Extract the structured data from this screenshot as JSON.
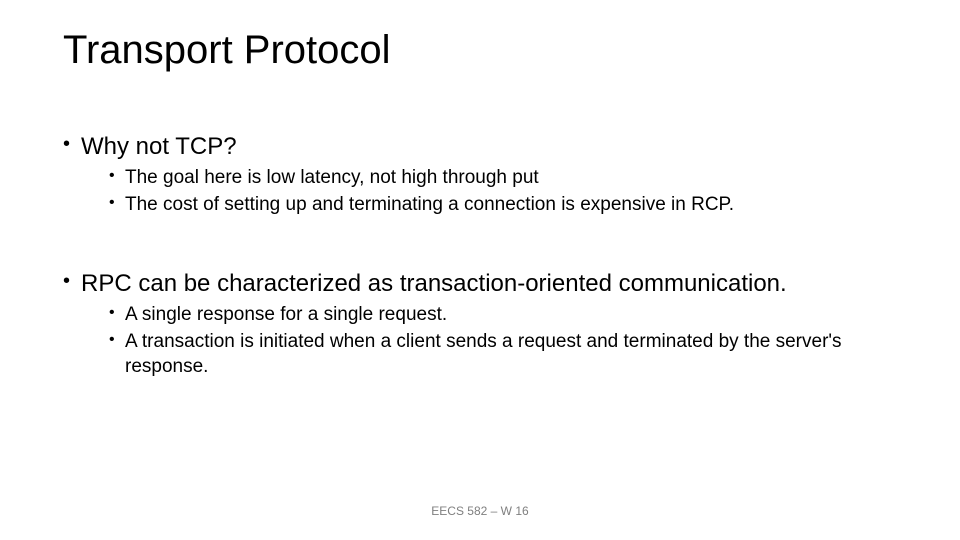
{
  "title": "Transport Protocol",
  "bullets": {
    "b1": "Why not TCP?",
    "b1_1": "The goal here is low latency, not high through put",
    "b1_2": "The cost of setting up and terminating a connection is expensive in RCP.",
    "b2": "RPC can be characterized as transaction-oriented communication.",
    "b2_1": "A single response for a single request.",
    "b2_2": "A transaction is initiated when a client sends a request and terminated by the server's response."
  },
  "footer": "EECS 582 – W 16",
  "style": {
    "background_color": "#ffffff",
    "text_color": "#000000",
    "footer_color": "#7f7f7f",
    "title_fontsize": 40,
    "lvl1_fontsize": 24,
    "lvl2_fontsize": 19,
    "footer_fontsize": 12,
    "font_family": "Arial"
  }
}
